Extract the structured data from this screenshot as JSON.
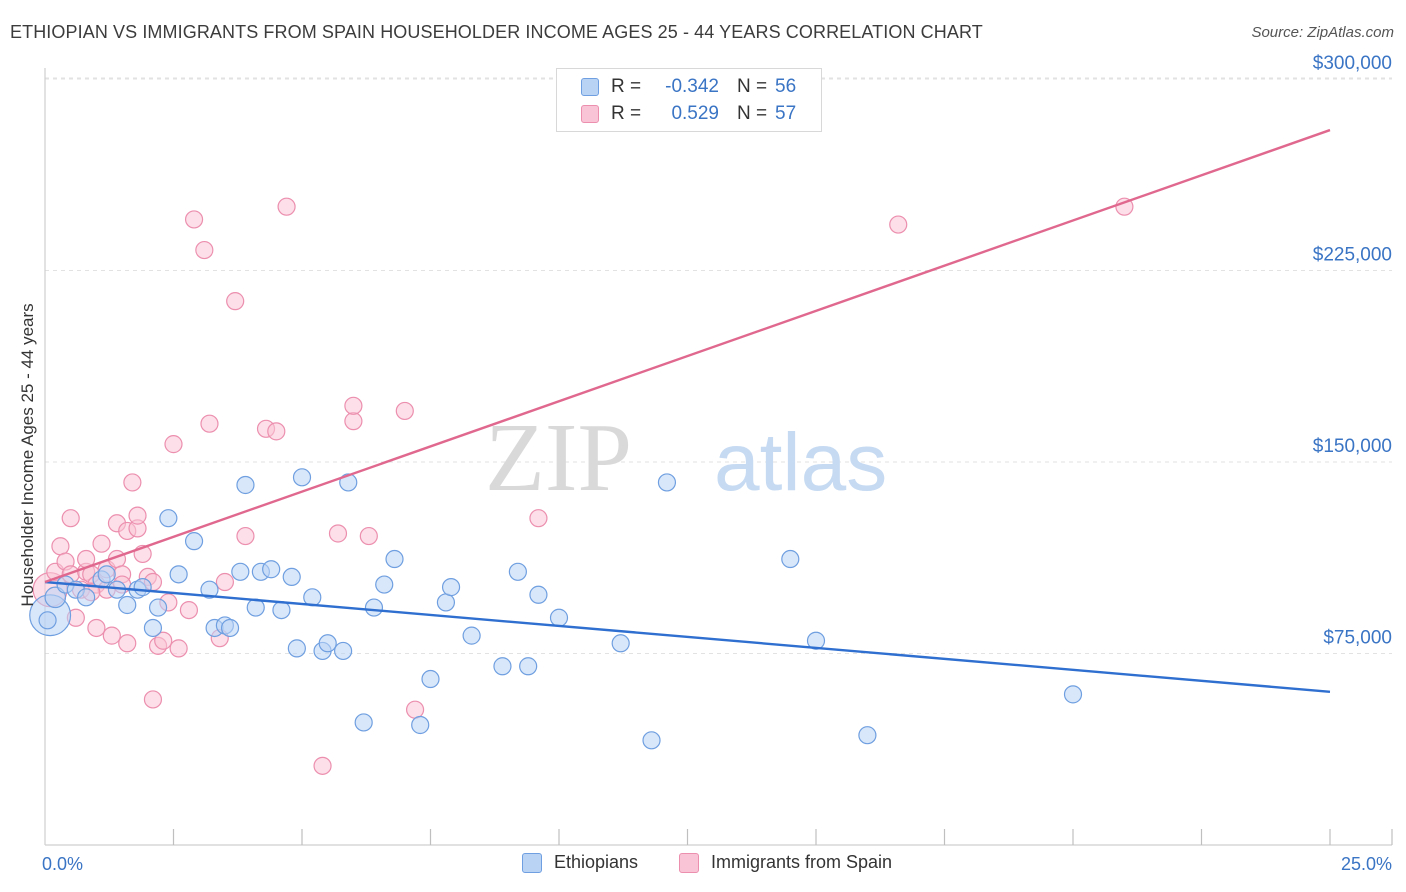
{
  "title": "ETHIOPIAN VS IMMIGRANTS FROM SPAIN HOUSEHOLDER INCOME AGES 25 - 44 YEARS CORRELATION CHART",
  "source": "Source: ZipAtlas.com",
  "watermark": {
    "zip": "ZIP",
    "atlas": "atlas"
  },
  "colors": {
    "blue_fill": "#b9d3f5",
    "blue_stroke": "#6f9fe0",
    "blue_line": "#2f6fcf",
    "pink_fill": "#f9c5d6",
    "pink_stroke": "#ec8fae",
    "pink_line": "#e0688f",
    "tick_label": "#3a74c4",
    "grid": "#e2e2e2"
  },
  "legend_top": {
    "rows": [
      {
        "r_label": "R =",
        "r_value": "-0.342",
        "n_label": "N =",
        "n_value": "56",
        "series": "blue"
      },
      {
        "r_label": "R =",
        "r_value": "0.529",
        "n_label": "N =",
        "n_value": "57",
        "series": "pink"
      }
    ]
  },
  "legend_bottom": [
    {
      "label": "Ethiopians",
      "series": "blue"
    },
    {
      "label": "Immigrants from Spain",
      "series": "pink"
    }
  ],
  "chart_data": {
    "type": "scatter",
    "title": "ETHIOPIAN VS IMMIGRANTS FROM SPAIN HOUSEHOLDER INCOME AGES 25 - 44 YEARS CORRELATION CHART",
    "xlabel": "",
    "ylabel": "Householder Income Ages 25 - 44 years",
    "xlim": [
      0,
      25
    ],
    "ylim": [
      0,
      310000
    ],
    "x_tick_labels": [
      {
        "value": 0,
        "label": "0.0%"
      },
      {
        "value": 25,
        "label": "25.0%"
      }
    ],
    "y_ticks": [
      {
        "value": 75000,
        "label": "$75,000"
      },
      {
        "value": 150000,
        "label": "$150,000"
      },
      {
        "value": 225000,
        "label": "$225,000"
      },
      {
        "value": 300000,
        "label": "$300,000"
      }
    ],
    "x_minor_ticks": [
      2.5,
      5,
      7.5,
      10,
      12.5,
      15,
      17.5,
      20,
      22.5,
      25
    ],
    "grid": true,
    "series": [
      {
        "name": "Ethiopians",
        "color": "blue",
        "trend": {
          "x": [
            0,
            25
          ],
          "y": [
            103000,
            60000
          ]
        },
        "points": [
          [
            0.1,
            90000,
            2.4
          ],
          [
            0.2,
            97000,
            1.2
          ],
          [
            0.4,
            102000,
            1
          ],
          [
            0.6,
            100000,
            1
          ],
          [
            0.8,
            97000,
            1
          ],
          [
            1.1,
            104000,
            1
          ],
          [
            1.2,
            106000,
            1
          ],
          [
            1.4,
            100000,
            1
          ],
          [
            1.6,
            94000,
            1
          ],
          [
            1.8,
            100000,
            1
          ],
          [
            1.9,
            101000,
            1
          ],
          [
            2.1,
            85000,
            1
          ],
          [
            2.2,
            93000,
            1
          ],
          [
            2.4,
            128000,
            1
          ],
          [
            2.6,
            106000,
            1
          ],
          [
            2.9,
            119000,
            1
          ],
          [
            3.2,
            100000,
            1
          ],
          [
            3.3,
            85000,
            1
          ],
          [
            3.5,
            86000,
            1
          ],
          [
            3.6,
            85000,
            1
          ],
          [
            3.8,
            107000,
            1
          ],
          [
            3.9,
            141000,
            1
          ],
          [
            4.1,
            93000,
            1
          ],
          [
            4.2,
            107000,
            1
          ],
          [
            4.4,
            108000,
            1
          ],
          [
            4.6,
            92000,
            1
          ],
          [
            4.8,
            105000,
            1
          ],
          [
            4.9,
            77000,
            1
          ],
          [
            5.0,
            144000,
            1
          ],
          [
            5.2,
            97000,
            1
          ],
          [
            5.4,
            76000,
            1
          ],
          [
            5.5,
            79000,
            1
          ],
          [
            5.8,
            76000,
            1
          ],
          [
            5.9,
            142000,
            1
          ],
          [
            6.2,
            48000,
            1
          ],
          [
            6.4,
            93000,
            1
          ],
          [
            6.6,
            102000,
            1
          ],
          [
            6.8,
            112000,
            1
          ],
          [
            7.3,
            47000,
            1
          ],
          [
            7.5,
            65000,
            1
          ],
          [
            7.8,
            95000,
            1
          ],
          [
            7.9,
            101000,
            1
          ],
          [
            8.3,
            82000,
            1
          ],
          [
            8.9,
            70000,
            1
          ],
          [
            9.2,
            107000,
            1
          ],
          [
            9.4,
            70000,
            1
          ],
          [
            9.6,
            98000,
            1
          ],
          [
            10.0,
            89000,
            1
          ],
          [
            11.2,
            79000,
            1
          ],
          [
            11.8,
            41000,
            1
          ],
          [
            12.1,
            142000,
            1
          ],
          [
            14.5,
            112000,
            1
          ],
          [
            15.0,
            80000,
            1
          ],
          [
            16.0,
            43000,
            1
          ],
          [
            20.0,
            59000,
            1
          ],
          [
            0.05,
            88000,
            1
          ]
        ]
      },
      {
        "name": "Immigrants from Spain",
        "color": "pink",
        "trend": {
          "x": [
            0,
            25
          ],
          "y": [
            103000,
            280000
          ]
        },
        "points": [
          [
            0.1,
            100000,
            2
          ],
          [
            0.2,
            107000,
            1
          ],
          [
            0.3,
            117000,
            1
          ],
          [
            0.4,
            111000,
            1
          ],
          [
            0.5,
            106000,
            1
          ],
          [
            0.5,
            128000,
            1
          ],
          [
            0.6,
            89000,
            1
          ],
          [
            0.7,
            100000,
            1
          ],
          [
            0.8,
            107000,
            1
          ],
          [
            0.8,
            112000,
            1
          ],
          [
            0.9,
            106000,
            1
          ],
          [
            1.0,
            102000,
            1
          ],
          [
            1.0,
            85000,
            1
          ],
          [
            1.1,
            118000,
            1
          ],
          [
            1.2,
            100000,
            1
          ],
          [
            1.2,
            108000,
            1
          ],
          [
            1.3,
            82000,
            1
          ],
          [
            1.4,
            112000,
            1
          ],
          [
            1.4,
            126000,
            1
          ],
          [
            1.5,
            106000,
            1
          ],
          [
            1.6,
            79000,
            1
          ],
          [
            1.6,
            123000,
            1
          ],
          [
            1.7,
            142000,
            1
          ],
          [
            1.8,
            124000,
            1
          ],
          [
            1.8,
            129000,
            1
          ],
          [
            1.9,
            114000,
            1
          ],
          [
            2.0,
            105000,
            1
          ],
          [
            2.1,
            103000,
            1
          ],
          [
            2.1,
            57000,
            1
          ],
          [
            2.2,
            78000,
            1
          ],
          [
            2.3,
            80000,
            1
          ],
          [
            2.4,
            95000,
            1
          ],
          [
            2.5,
            157000,
            1
          ],
          [
            2.6,
            77000,
            1
          ],
          [
            2.8,
            92000,
            1
          ],
          [
            2.9,
            245000,
            1
          ],
          [
            3.1,
            233000,
            1
          ],
          [
            3.2,
            165000,
            1
          ],
          [
            3.4,
            81000,
            1
          ],
          [
            3.5,
            103000,
            1
          ],
          [
            3.7,
            213000,
            1
          ],
          [
            3.9,
            121000,
            1
          ],
          [
            4.3,
            163000,
            1
          ],
          [
            4.5,
            162000,
            1
          ],
          [
            4.7,
            250000,
            1
          ],
          [
            5.4,
            31000,
            1
          ],
          [
            5.7,
            122000,
            1
          ],
          [
            6.0,
            166000,
            1
          ],
          [
            6.0,
            172000,
            1
          ],
          [
            6.3,
            121000,
            1
          ],
          [
            7.0,
            170000,
            1
          ],
          [
            7.2,
            53000,
            1
          ],
          [
            9.6,
            128000,
            1
          ],
          [
            16.6,
            243000,
            1
          ],
          [
            21.0,
            250000,
            1
          ],
          [
            0.9,
            99000,
            1
          ],
          [
            1.5,
            102000,
            1
          ]
        ]
      }
    ]
  }
}
